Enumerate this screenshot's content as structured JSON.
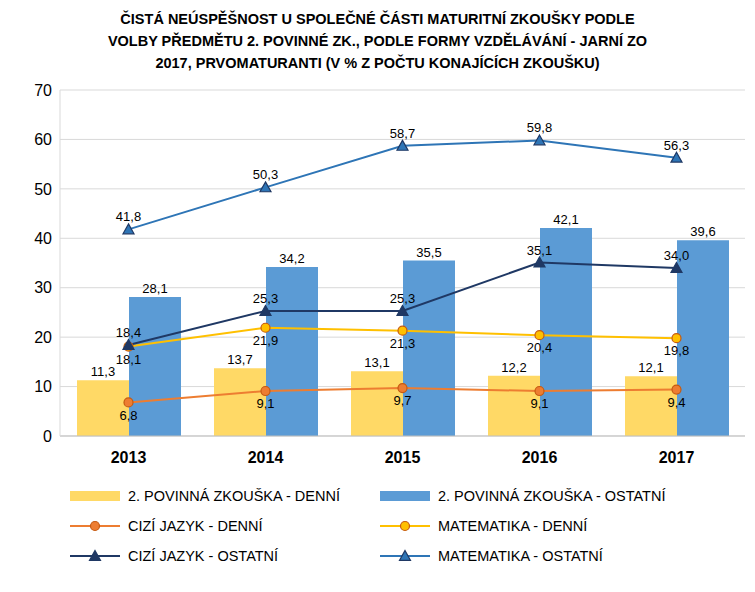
{
  "chart_data": {
    "type": "bar",
    "title": "ČISTÁ NEÚSPĚŠNOST U SPOLEČNÉ ČÁSTI MATURITNÍ ZKOUŠKY PODLE VOLBY PŘEDMĚTU 2. POVINNÉ ZK., PODLE FORMY VZDĚLÁVÁNÍ - JARNÍ ZO 2017, PRVOMATURANTI (V % Z POČTU KONAJÍCÍCH ZKOUŠKU)",
    "categories": [
      "2013",
      "2014",
      "2015",
      "2016",
      "2017"
    ],
    "series": [
      {
        "name": "2. POVINNÁ ZKOUŠKA - DENNÍ",
        "type": "bar",
        "color": "#ffd966",
        "values": [
          11.3,
          13.7,
          13.1,
          12.2,
          12.1
        ],
        "value_labels": [
          "11,3",
          "13,7",
          "13,1",
          "12,2",
          "12,1"
        ]
      },
      {
        "name": "2. POVINNÁ ZKOUŠKA - OSTATNÍ",
        "type": "bar",
        "color": "#5b9bd5",
        "values": [
          28.1,
          34.2,
          35.5,
          42.1,
          39.6
        ],
        "value_labels": [
          "28,1",
          "34,2",
          "35,5",
          "42,1",
          "39,6"
        ]
      },
      {
        "name": "CIZÍ JAZYK - DENNÍ",
        "type": "line",
        "color": "#ed7d31",
        "marker": "circle",
        "values": [
          6.8,
          9.1,
          9.7,
          9.1,
          9.4
        ],
        "value_labels": [
          "6,8",
          "9,1",
          "9,7",
          "9,1",
          "9,4"
        ]
      },
      {
        "name": "MATEMATIKA - DENNÍ",
        "type": "line",
        "color": "#ffc000",
        "marker": "circle",
        "values": [
          18.1,
          21.9,
          21.3,
          20.4,
          19.8
        ],
        "value_labels": [
          "18,1",
          "21,9",
          "21,3",
          "20,4",
          "19,8"
        ]
      },
      {
        "name": "CIZÍ JAZYK - OSTATNÍ",
        "type": "line",
        "color": "#1f3864",
        "marker": "triangle",
        "values": [
          18.4,
          25.3,
          25.3,
          35.1,
          34.0
        ],
        "value_labels": [
          "18,4",
          "25,3",
          "25,3",
          "35,1",
          "34,0"
        ]
      },
      {
        "name": "MATEMATIKA - OSTATNÍ",
        "type": "line",
        "color": "#2e75b6",
        "marker": "triangle",
        "values": [
          41.8,
          50.3,
          58.7,
          59.8,
          56.3
        ],
        "value_labels": [
          "41,8",
          "50,3",
          "58,7",
          "59,8",
          "56,3"
        ]
      }
    ],
    "ylim": [
      0,
      70
    ],
    "yticks": [
      0,
      10,
      20,
      30,
      40,
      50,
      60,
      70
    ],
    "grid": true,
    "legend": "bottom",
    "data_labels": true
  }
}
